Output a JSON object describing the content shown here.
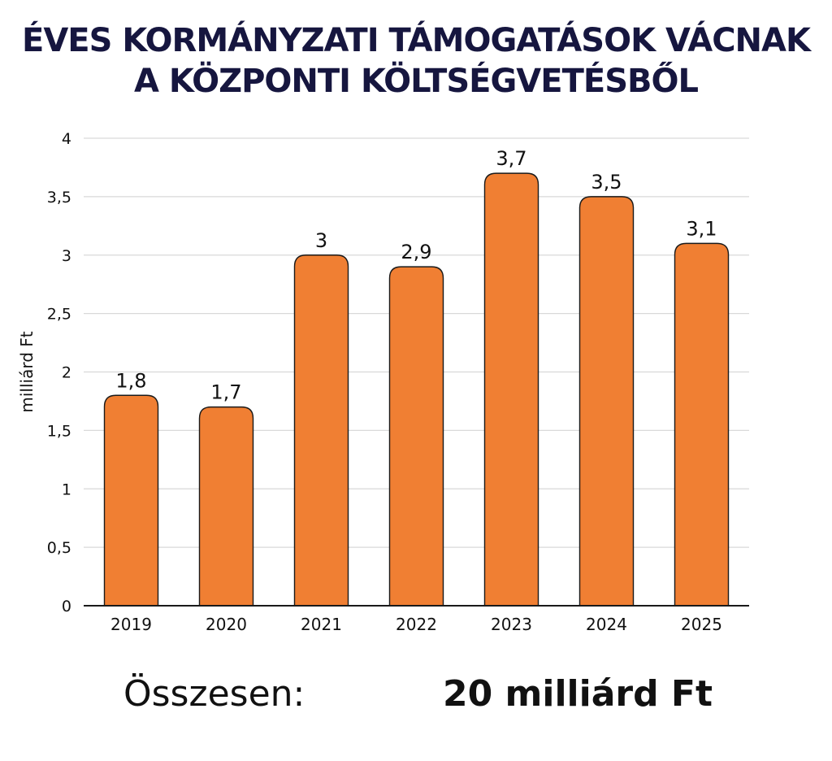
{
  "header": {
    "title_line1": "ÉVES KORMÁNYZATI TÁMOGATÁSOK VÁCNAK",
    "title_line2": "A KÖZPONTI KÖLTSÉGVETÉSBŐL"
  },
  "footer": {
    "label": "Összesen:",
    "value": "20 milliárd Ft"
  },
  "chart_data": {
    "type": "bar",
    "title": "ÉVES KORMÁNYZATI TÁMOGATÁSOK VÁCNAK A KÖZPONTI KÖLTSÉGVETÉSBŐL",
    "xlabel": "",
    "ylabel": "milliárd Ft",
    "categories": [
      "2019",
      "2020",
      "2021",
      "2022",
      "2023",
      "2024",
      "2025"
    ],
    "values": [
      1.8,
      1.7,
      3,
      2.9,
      3.7,
      3.5,
      3.1
    ],
    "value_labels": [
      "1,8",
      "1,7",
      "3",
      "2,9",
      "3,7",
      "3,5",
      "3,1"
    ],
    "y_ticks": [
      0,
      0.5,
      1,
      1.5,
      2,
      2.5,
      3,
      3.5,
      4
    ],
    "y_tick_labels": [
      "0",
      "0,5",
      "1",
      "1,5",
      "2",
      "2,5",
      "3",
      "3,5",
      "4"
    ],
    "ylim": [
      0,
      4
    ],
    "grid": true,
    "legend": "none",
    "colors": {
      "bar": "#f07f33",
      "bar_stroke": "#1a1a1a",
      "grid": "#d9d9d9",
      "axis": "#1a1a1a",
      "title": "#16163f"
    }
  }
}
